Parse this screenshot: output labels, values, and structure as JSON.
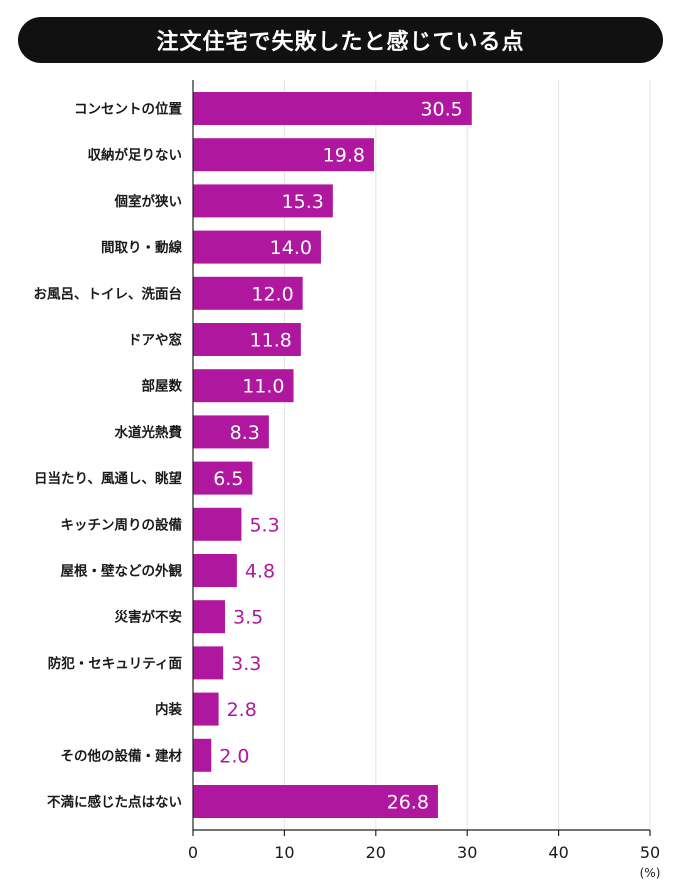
{
  "title": "注文住宅で失敗したと感じている点",
  "chart_data": {
    "type": "bar",
    "orientation": "horizontal",
    "categories": [
      "コンセントの位置",
      "収納が足りない",
      "個室が狭い",
      "間取り・動線",
      "お風呂、トイレ、洗面台",
      "ドアや窓",
      "部屋数",
      "水道光熱費",
      "日当たり、風通し、眺望",
      "キッチン周りの設備",
      "屋根・壁などの外観",
      "災害が不安",
      "防犯・セキュリティ面",
      "内装",
      "その他の設備・建材",
      "不満に感じた点はない"
    ],
    "values": [
      30.5,
      19.8,
      15.3,
      14.0,
      12.0,
      11.8,
      11.0,
      8.3,
      6.5,
      5.3,
      4.8,
      3.5,
      3.3,
      2.8,
      2.0,
      26.8
    ],
    "value_labels": [
      "30.5",
      "19.8",
      "15.3",
      "14.0",
      "12.0",
      "11.8",
      "11.0",
      "8.3",
      "6.5",
      "5.3",
      "4.8",
      "3.5",
      "3.3",
      "2.8",
      "2.0",
      "26.8"
    ],
    "xlim": [
      0,
      50
    ],
    "xticks": [
      0,
      10,
      20,
      30,
      40,
      50
    ],
    "xunit": "(%)",
    "grid": true,
    "bar_color": "#b0179f",
    "label_color_outside": "#b0179f",
    "label_color_inside": "#ffffff"
  }
}
